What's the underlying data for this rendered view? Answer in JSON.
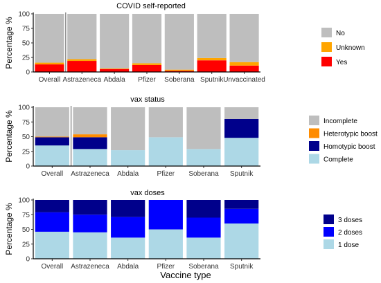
{
  "x_axis_title": "Vaccine type",
  "chart_data": [
    {
      "type": "bar",
      "stacked": true,
      "title": "COVID self-reported",
      "ylabel": "Percentage %",
      "ylim": [
        0,
        100
      ],
      "yticks": [
        "0",
        "25",
        "50",
        "75",
        "100"
      ],
      "categories": [
        "Overall",
        "Astrazeneca",
        "Abdala",
        "Pfizer",
        "Soberana",
        "Sputnik",
        "Unvaccinated"
      ],
      "series": [
        {
          "name": "Yes",
          "color": "#ff0000",
          "values": [
            13,
            19,
            5,
            12,
            2,
            20,
            11
          ]
        },
        {
          "name": "Unknown",
          "color": "#ffa500",
          "values": [
            3,
            3,
            1,
            3,
            2,
            4,
            6
          ]
        },
        {
          "name": "No",
          "color": "#bebebe",
          "values": [
            84,
            78,
            94,
            85,
            96,
            76,
            83
          ]
        }
      ],
      "legend": [
        "No",
        "Unknown",
        "Yes"
      ]
    },
    {
      "type": "bar",
      "stacked": true,
      "title": "vax status",
      "ylabel": "Percentage %",
      "ylim": [
        0,
        100
      ],
      "yticks": [
        "0",
        "25",
        "50",
        "75",
        "100"
      ],
      "categories": [
        "Overall",
        "Astrazeneca",
        "Abdala",
        "Pfizer",
        "Soberana",
        "Sputnik"
      ],
      "series": [
        {
          "name": "Complete",
          "color": "#add8e6",
          "values": [
            35,
            29,
            27,
            49,
            29,
            48
          ]
        },
        {
          "name": "Homotypic boost",
          "color": "#00008b",
          "values": [
            14,
            20,
            0,
            0,
            0,
            32
          ]
        },
        {
          "name": "Heterotypic boost",
          "color": "#ff8c00",
          "values": [
            1,
            5,
            0,
            0,
            0,
            0
          ]
        },
        {
          "name": "Incomplete",
          "color": "#bebebe",
          "values": [
            50,
            46,
            73,
            51,
            71,
            20
          ]
        }
      ],
      "legend": [
        "Incomplete",
        "Heterotypic boost",
        "Homotypic boost",
        "Complete"
      ]
    },
    {
      "type": "bar",
      "stacked": true,
      "title": "vax doses",
      "ylabel": "Percentage %",
      "ylim": [
        0,
        100
      ],
      "yticks": [
        "0",
        "25",
        "50",
        "75",
        "100"
      ],
      "categories": [
        "Overall",
        "Astrazeneca",
        "Abdala",
        "Pfizer",
        "Soberana",
        "Sputnik"
      ],
      "series": [
        {
          "name": "1 dose",
          "color": "#add8e6",
          "values": [
            46,
            45,
            36,
            50,
            36,
            60
          ]
        },
        {
          "name": "2 doses",
          "color": "#0000ff",
          "values": [
            33,
            30,
            35,
            50,
            34,
            25
          ]
        },
        {
          "name": "3 doses",
          "color": "#00008b",
          "values": [
            21,
            25,
            29,
            0,
            30,
            15
          ]
        }
      ],
      "legend": [
        "3 doses",
        "2 doses",
        "1 dose"
      ]
    }
  ]
}
